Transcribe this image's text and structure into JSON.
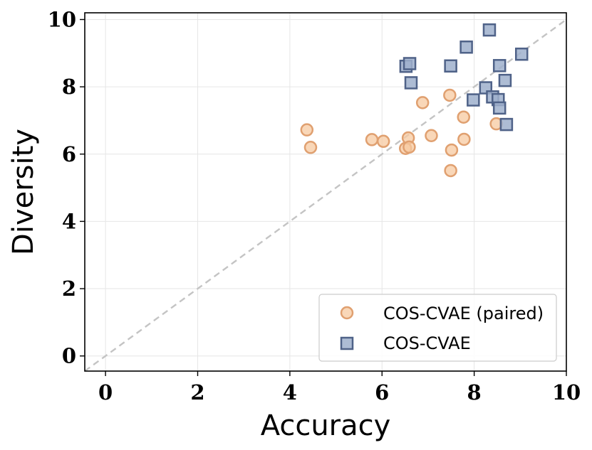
{
  "chart_data": {
    "type": "scatter",
    "title": "",
    "xlabel": "Accuracy",
    "ylabel": "Diversity",
    "xlim": [
      -0.45,
      10
    ],
    "ylim": [
      -0.45,
      10.2
    ],
    "xticks": [
      "0",
      "2",
      "4",
      "6",
      "8",
      "10"
    ],
    "yticks": [
      "0",
      "2",
      "4",
      "6",
      "8",
      "10"
    ],
    "grid": true,
    "reference_line": "y = x (dashed)",
    "legend_position": "bottom-right",
    "colors": {
      "paired_fill": "#f7c9a0",
      "paired_edge": "#e0a070",
      "unpaired_fill": "#9fb0cc",
      "unpaired_edge": "#4f6288",
      "reference_line": "#c4c4c4",
      "grid": "#e6e6e6"
    },
    "series": [
      {
        "name": "COS-CVAE (paired)",
        "marker": "circle",
        "points": [
          [
            4.37,
            6.72
          ],
          [
            4.45,
            6.2
          ],
          [
            5.78,
            6.43
          ],
          [
            6.03,
            6.38
          ],
          [
            6.51,
            6.17
          ],
          [
            6.57,
            6.48
          ],
          [
            6.59,
            6.21
          ],
          [
            6.88,
            7.53
          ],
          [
            7.07,
            6.55
          ],
          [
            7.47,
            7.75
          ],
          [
            7.49,
            5.51
          ],
          [
            7.51,
            6.12
          ],
          [
            7.77,
            7.1
          ],
          [
            7.78,
            6.44
          ],
          [
            8.48,
            6.9
          ]
        ]
      },
      {
        "name": "COS-CVAE",
        "marker": "square",
        "points": [
          [
            6.52,
            8.61
          ],
          [
            6.6,
            8.69
          ],
          [
            6.63,
            8.12
          ],
          [
            7.49,
            8.62
          ],
          [
            7.83,
            9.18
          ],
          [
            7.98,
            7.61
          ],
          [
            8.25,
            7.97
          ],
          [
            8.33,
            9.69
          ],
          [
            8.4,
            7.7
          ],
          [
            8.52,
            7.62
          ],
          [
            8.55,
            7.37
          ],
          [
            8.55,
            8.63
          ],
          [
            8.67,
            8.19
          ],
          [
            8.7,
            6.88
          ],
          [
            9.03,
            8.97
          ]
        ]
      }
    ]
  }
}
